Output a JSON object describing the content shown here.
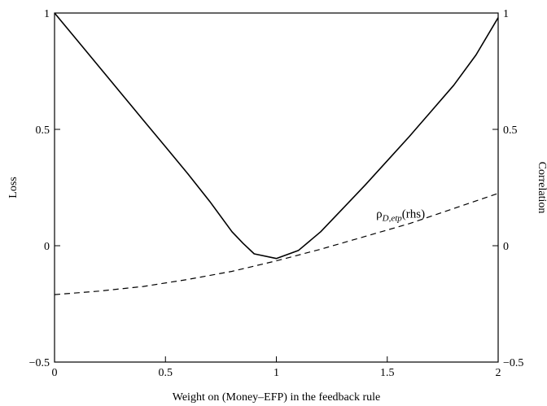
{
  "chart_data": {
    "type": "line",
    "title": "",
    "xlabel": "Weight on (Money–EFP) in the feedback rule",
    "ylabel_left": "Loss",
    "ylabel_right": "Correlation",
    "xlim": [
      0,
      2
    ],
    "ylim_left": [
      -0.5,
      1
    ],
    "ylim_right": [
      -0.5,
      1
    ],
    "x_ticks": [
      "0",
      "0.5",
      "1",
      "1.5",
      "2"
    ],
    "y_ticks_left": [
      "−0.5",
      "0",
      "0.5",
      "1"
    ],
    "y_ticks_right": [
      "−0.5",
      "0",
      "0.5",
      "1"
    ],
    "grid": false,
    "series": [
      {
        "axis": "left",
        "style": "solid",
        "x": [
          0,
          0.1,
          0.2,
          0.3,
          0.4,
          0.5,
          0.6,
          0.7,
          0.8,
          0.85,
          0.9,
          1.0,
          1.1,
          1.2,
          1.3,
          1.4,
          1.5,
          1.6,
          1.7,
          1.8,
          1.9,
          2.0
        ],
        "values": [
          1.0,
          0.885,
          0.77,
          0.655,
          0.54,
          0.425,
          0.31,
          0.19,
          0.06,
          0.01,
          -0.035,
          -0.055,
          -0.02,
          0.06,
          0.16,
          0.26,
          0.365,
          0.47,
          0.58,
          0.69,
          0.82,
          0.98
        ]
      },
      {
        "axis": "right",
        "style": "dashed",
        "annotation": {
          "base": "ρ",
          "sub": "D,etp",
          "suffix": "(rhs)"
        },
        "x": [
          0,
          0.2,
          0.4,
          0.6,
          0.8,
          1.0,
          1.2,
          1.4,
          1.6,
          1.8,
          2.0
        ],
        "values": [
          -0.21,
          -0.195,
          -0.175,
          -0.145,
          -0.11,
          -0.065,
          -0.015,
          0.04,
          0.095,
          0.16,
          0.225
        ]
      }
    ]
  }
}
